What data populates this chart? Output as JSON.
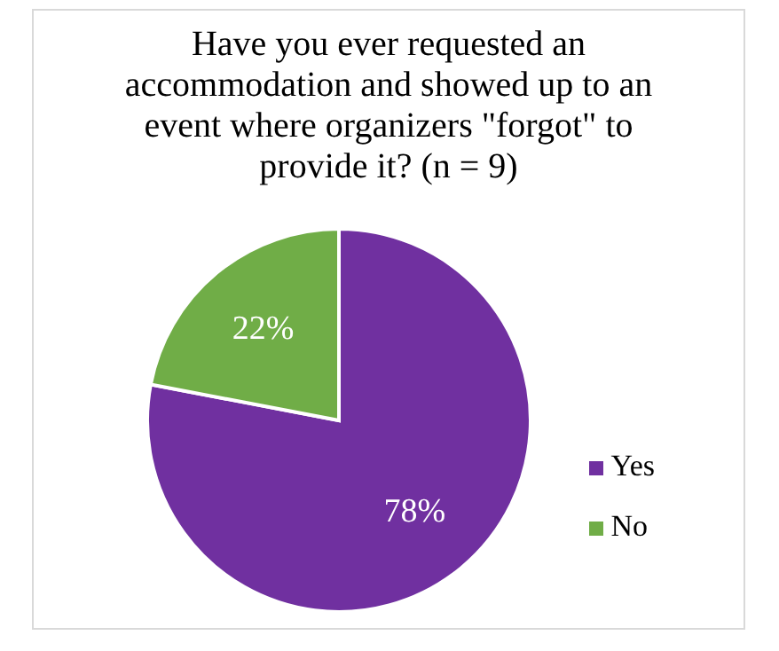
{
  "chart_data": {
    "type": "pie",
    "title": "Have you ever requested an accommodation and showed up to an event where organizers \"forgot\" to provide it? (n = 9)",
    "categories": [
      "Yes",
      "No"
    ],
    "values": [
      78,
      22
    ],
    "colors": [
      "#7030a0",
      "#70ad47"
    ],
    "value_labels": [
      "78%",
      "22%"
    ],
    "legend": "bottom right"
  }
}
